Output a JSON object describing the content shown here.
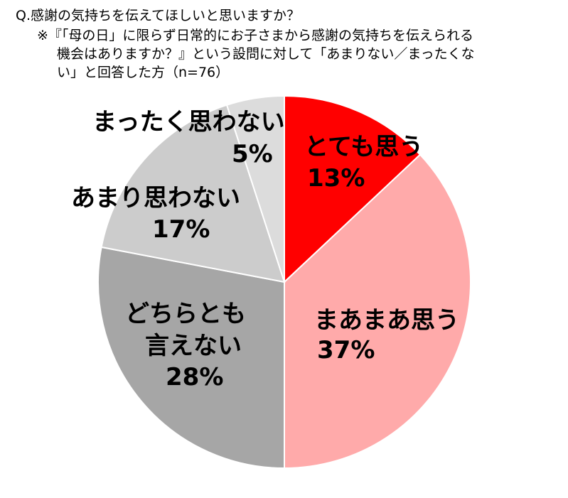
{
  "header": {
    "question": "Q.感謝の気持ちを伝えてほしいと思いますか？",
    "note_line1": "※『「母の日」に限らず日常的にお子さまから感謝の気持ちを伝えられる",
    "note_line2": "機会はありますか？』という設問に対して「あまりない／まったくな",
    "note_line3": "い」と回答した方（n=76）"
  },
  "chart_data": {
    "type": "pie",
    "title": "Q.感謝の気持ちを伝えてほしいと思いますか？",
    "start": "top",
    "direction": "clockwise",
    "slices": [
      {
        "label": "とても思う",
        "value": 13,
        "value_label": "13%",
        "color": "#ff0000"
      },
      {
        "label": "まあまあ思う",
        "value": 37,
        "value_label": "37%",
        "color": "#ffaaaa"
      },
      {
        "label": "どちらとも言えない",
        "value": 28,
        "value_label": "28%",
        "color": "#a6a6a6"
      },
      {
        "label": "あまり思わない",
        "value": 17,
        "value_label": "17%",
        "color": "#cccccc"
      },
      {
        "label": "まったく思わない",
        "value": 5,
        "value_label": "5%",
        "color": "#dcdcdc"
      }
    ]
  },
  "labels": {
    "slice0_line1": "とても思う",
    "slice0_pct": "13%",
    "slice1_line1": "まあまあ思う",
    "slice1_pct": "37%",
    "slice2_line1": "どちらとも",
    "slice2_line2": "言えない",
    "slice2_pct": "28%",
    "slice3_line1": "あまり思わない",
    "slice3_pct": "17%",
    "slice4_line1": "まったく思わない",
    "slice4_pct": "5%"
  }
}
